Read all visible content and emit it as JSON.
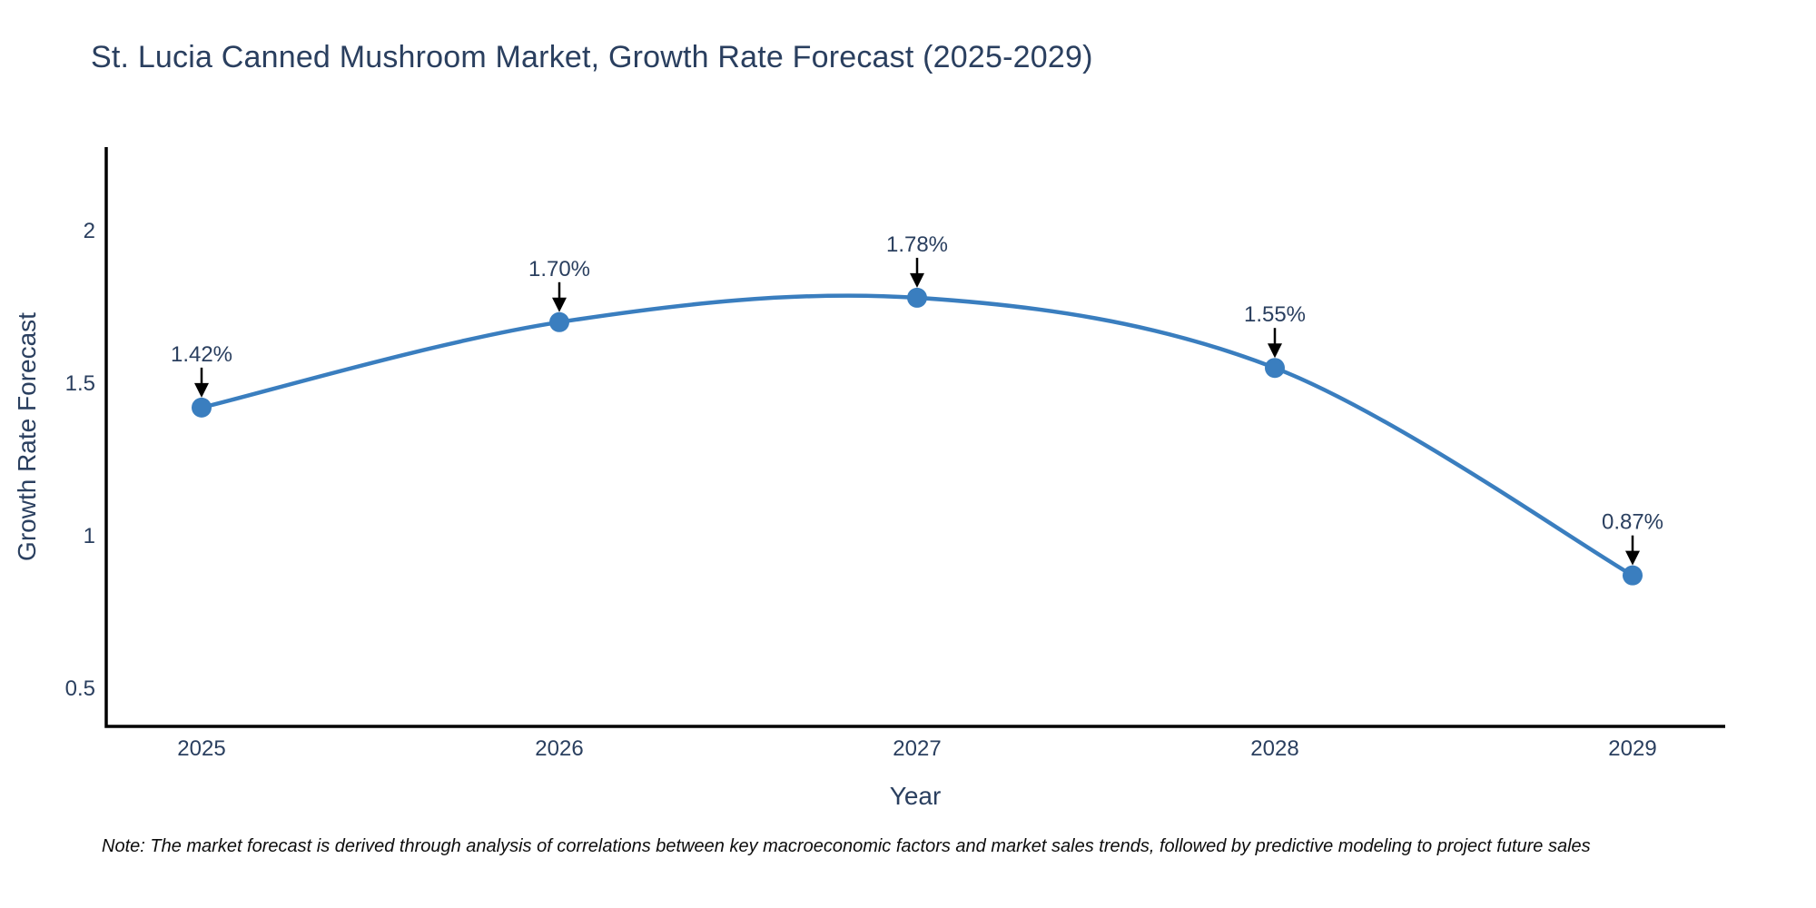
{
  "title": "St. Lucia Canned Mushroom Market, Growth Rate Forecast (2025-2029)",
  "note": "Note: The market forecast is derived through analysis of correlations between key macroeconomic factors and market sales trends, followed by predictive modeling to project future sales",
  "chart_data": {
    "type": "line",
    "title": "St. Lucia Canned Mushroom Market, Growth Rate Forecast (2025-2029)",
    "xlabel": "Year",
    "ylabel": "Growth Rate Forecast",
    "categories": [
      "2025",
      "2026",
      "2027",
      "2028",
      "2029"
    ],
    "values": [
      1.42,
      1.7,
      1.78,
      1.55,
      0.87
    ],
    "point_labels": [
      "1.42%",
      "1.70%",
      "1.78%",
      "1.55%",
      "0.87%"
    ],
    "yticks": [
      0.5,
      1,
      1.5,
      2
    ],
    "ylim": [
      0.35,
      2.28
    ],
    "line_shape": "spline",
    "grid": false,
    "legend": "none",
    "annotations": "each point labeled with percent value and a downward black arrow",
    "colors": {
      "line": "#3a7ebf",
      "marker": "#3a7ebf",
      "axis": "#000000",
      "text": "#2a3f5f",
      "arrow": "#000000",
      "background": "#ffffff"
    }
  }
}
